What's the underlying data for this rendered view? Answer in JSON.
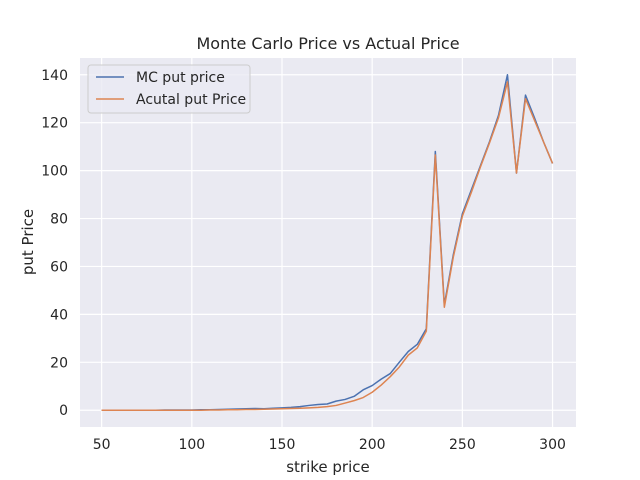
{
  "chart_data": {
    "type": "line",
    "title": "Monte Carlo Price vs Actual Price",
    "xlabel": "strike price",
    "ylabel": "put Price",
    "xlim": [
      38,
      313
    ],
    "ylim": [
      -7,
      147
    ],
    "xticks": [
      50,
      100,
      150,
      200,
      250,
      300
    ],
    "yticks": [
      0,
      20,
      40,
      60,
      80,
      100,
      120,
      140
    ],
    "grid": true,
    "legend": "top-left",
    "x": [
      50,
      55,
      60,
      65,
      70,
      75,
      80,
      85,
      90,
      95,
      100,
      105,
      110,
      115,
      120,
      125,
      130,
      135,
      140,
      145,
      150,
      155,
      160,
      165,
      170,
      175,
      180,
      185,
      190,
      195,
      200,
      205,
      210,
      215,
      220,
      225,
      230,
      235,
      240,
      245,
      250,
      255,
      260,
      265,
      270,
      275,
      280,
      285,
      290,
      295,
      300
    ],
    "series": [
      {
        "name": "MC put price",
        "color": "#4c72b0",
        "values": [
          0.0,
          0.0,
          0.0,
          0.0,
          0.0,
          0.0,
          0.0,
          0.1,
          0.1,
          0.1,
          0.1,
          0.2,
          0.2,
          0.3,
          0.4,
          0.5,
          0.6,
          0.7,
          0.6,
          0.8,
          1.0,
          1.2,
          1.5,
          2.0,
          2.4,
          2.6,
          3.8,
          4.5,
          5.8,
          8.5,
          10.3,
          13.0,
          15.3,
          20.0,
          24.5,
          27.5,
          34.0,
          108.0,
          44.0,
          65.0,
          82.0,
          92.0,
          102.0,
          112.0,
          123.0,
          140.0,
          99.0,
          131.5,
          122.0,
          112.0,
          103.0
        ]
      },
      {
        "name": "Acutal put Price",
        "color": "#dd8452",
        "values": [
          0.0,
          0.0,
          0.0,
          0.0,
          0.0,
          0.0,
          0.0,
          0.0,
          0.0,
          0.0,
          0.0,
          0.0,
          0.1,
          0.1,
          0.2,
          0.2,
          0.3,
          0.3,
          0.4,
          0.5,
          0.6,
          0.7,
          0.8,
          1.0,
          1.2,
          1.5,
          2.0,
          3.0,
          4.0,
          5.3,
          7.5,
          10.5,
          14.0,
          18.0,
          23.0,
          26.0,
          33.0,
          106.5,
          43.0,
          64.0,
          81.0,
          91.0,
          101.5,
          111.5,
          122.0,
          137.0,
          99.0,
          130.0,
          121.0,
          112.0,
          103.0
        ]
      }
    ]
  }
}
